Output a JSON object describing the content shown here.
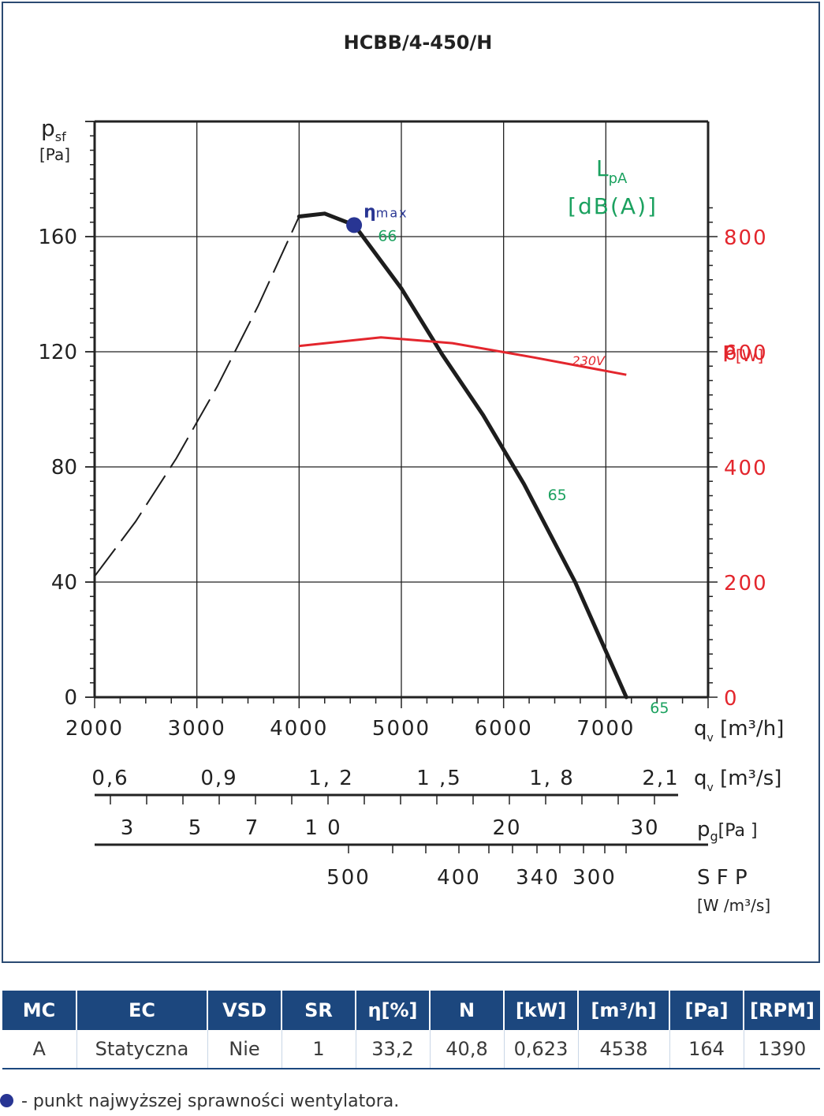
{
  "chart_data": {
    "type": "line",
    "title": "HCBB/4-450/H",
    "y_label_main": "p",
    "y_label_sub": "sf",
    "y_unit": "[Pa]",
    "ylim": [
      0,
      200
    ],
    "yticks": [
      0,
      40,
      80,
      120,
      160
    ],
    "x_label": "q",
    "x_label_sub": "v",
    "x_unit": "[m³/h]",
    "xlim": [
      2000,
      8000
    ],
    "xticks": [
      2000,
      3000,
      4000,
      5000,
      6000,
      7000
    ],
    "x2_unit": "[m³/s]",
    "x2_ticks": [
      "0,6",
      "0,9",
      "1, 2",
      "1 ,5",
      "1, 8",
      "2,1"
    ],
    "x3_label": "p",
    "x3_label_sub": "g",
    "x3_unit": "[Pa ]",
    "x3_ticks": [
      "3",
      "5",
      "7",
      "1 0",
      "20",
      "30"
    ],
    "x4_label": "S F P",
    "x4_unit": "[W /m³/s]",
    "x4_ticks": [
      "500",
      "400",
      "340",
      "300"
    ],
    "power_axis_label": "P",
    "power_axis_unit": "[W]",
    "power_ylim": [
      0,
      1000
    ],
    "power_ticks": [
      0,
      200,
      400,
      600,
      800
    ],
    "noise_label": "L",
    "noise_label_sub": "pA",
    "noise_unit": "[dB(A)]",
    "eta_label": "η",
    "eta_label_sub": "max",
    "series": [
      {
        "name": "",
        "style": "dashed",
        "x": [
          2000,
          2400,
          2800,
          3200,
          3600,
          4000
        ],
        "y": [
          42,
          61,
          83,
          108,
          136,
          167
        ]
      },
      {
        "name": "",
        "style": "solid",
        "x": [
          4000,
          4250,
          4540,
          5000,
          5400,
          5800,
          6200,
          6700,
          7200
        ],
        "y": [
          167,
          168,
          164,
          142,
          119,
          98,
          74,
          40,
          0
        ]
      },
      {
        "name": "230V",
        "style": "power",
        "x": [
          4000,
          4800,
          5500,
          6300,
          7200
        ],
        "y_watts": [
          610,
          625,
          615,
          590,
          560
        ]
      }
    ],
    "noise_labels": [
      {
        "text": "66",
        "x": 4540,
        "y": 164
      },
      {
        "text": "65",
        "x": 6200,
        "y": 74
      },
      {
        "text": "65",
        "x": 7200,
        "y": 0
      }
    ],
    "bep": {
      "x": 4538,
      "y": 164
    }
  },
  "colors": {
    "curve": "#1d1d1d",
    "power": "#e3262d",
    "noise": "#1ba15f",
    "bep": "#283593",
    "table_header": "#1c477e",
    "frame": "#2b4a72"
  },
  "table": {
    "headers": [
      "MC",
      "EC",
      "VSD",
      "SR",
      "η[%]",
      "N",
      "[kW]",
      "[m³/h]",
      "[Pa]",
      "[RPM]"
    ],
    "row": [
      "A",
      "Statyczna",
      "Nie",
      "1",
      "33,2",
      "40,8",
      "0,623",
      "4538",
      "164",
      "1390"
    ]
  },
  "legend_note": "- punkt najwyższej sprawności wentylatora."
}
